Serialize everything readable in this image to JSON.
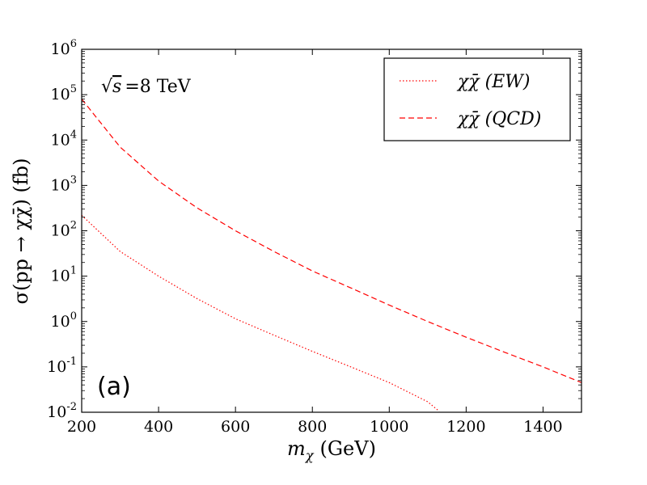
{
  "chart_data": {
    "type": "line",
    "xlabel": "m_χ (GeV)",
    "xlabel_main": "m",
    "xlabel_sub": "χ",
    "xlabel_unit": "(GeV)",
    "ylabel": "σ(pp → χχ̄) (fb)",
    "xlim": [
      200,
      1500
    ],
    "ylim_log10": [
      -2,
      6
    ],
    "yscale": "log",
    "x_ticks": [
      200,
      400,
      600,
      800,
      1000,
      1200,
      1400
    ],
    "y_tick_exponents": [
      -2,
      -1,
      0,
      1,
      2,
      3,
      4,
      5,
      6
    ],
    "y_tick_base": "10",
    "annotation": "√s =8 TeV",
    "annotation_root": "√",
    "annotation_s": "s",
    "annotation_rest": "=8 TeV",
    "panel_label": "(a)",
    "legend_position": "top-right",
    "series": [
      {
        "name": "χχ̄ (EW)",
        "style": "dotted",
        "color": "#ff0000",
        "x": [
          200,
          300,
          400,
          500,
          600,
          700,
          800,
          900,
          1000,
          1100,
          1130
        ],
        "y": [
          220,
          35,
          10,
          3.2,
          1.15,
          0.5,
          0.22,
          0.1,
          0.045,
          0.017,
          0.0105
        ]
      },
      {
        "name": "χχ̄ (QCD)",
        "style": "dashed",
        "color": "#ff0000",
        "x": [
          200,
          300,
          400,
          500,
          600,
          700,
          800,
          900,
          1000,
          1100,
          1200,
          1300,
          1400,
          1500
        ],
        "y": [
          80000,
          7000,
          1250,
          320,
          100,
          35,
          13,
          5.5,
          2.3,
          1.0,
          0.45,
          0.21,
          0.1,
          0.045
        ]
      }
    ]
  }
}
